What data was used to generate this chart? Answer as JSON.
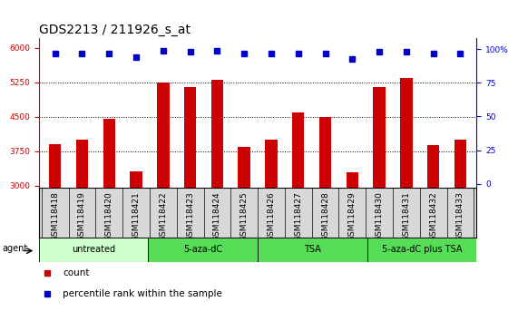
{
  "title": "GDS2213 / 211926_s_at",
  "samples": [
    "GSM118418",
    "GSM118419",
    "GSM118420",
    "GSM118421",
    "GSM118422",
    "GSM118423",
    "GSM118424",
    "GSM118425",
    "GSM118426",
    "GSM118427",
    "GSM118428",
    "GSM118429",
    "GSM118430",
    "GSM118431",
    "GSM118432",
    "GSM118433"
  ],
  "counts": [
    3900,
    4000,
    4450,
    3300,
    5250,
    5150,
    5300,
    3850,
    4000,
    4600,
    4500,
    3280,
    5150,
    5350,
    3880,
    4000
  ],
  "percentile_ranks": [
    97,
    97,
    97,
    94,
    99,
    98,
    99,
    97,
    97,
    97,
    97,
    93,
    98,
    98,
    97,
    97
  ],
  "bar_color": "#cc0000",
  "dot_color": "#0000cc",
  "ylim_left": [
    2950,
    6200
  ],
  "ylim_right": [
    -3,
    108
  ],
  "yticks_left": [
    3000,
    3750,
    4500,
    5250,
    6000
  ],
  "yticks_right": [
    0,
    25,
    50,
    75,
    100
  ],
  "grid_lines": [
    3750,
    4500,
    5250
  ],
  "group_list": [
    {
      "label": "untreated",
      "start": 0,
      "end": 4,
      "color": "#ccffcc"
    },
    {
      "label": "5-aza-dC",
      "start": 4,
      "end": 8,
      "color": "#55dd55"
    },
    {
      "label": "TSA",
      "start": 8,
      "end": 12,
      "color": "#55dd55"
    },
    {
      "label": "5-aza-dC plus TSA",
      "start": 12,
      "end": 16,
      "color": "#55dd55"
    }
  ],
  "agent_label": "agent",
  "legend_count_label": "count",
  "legend_pct_label": "percentile rank within the sample",
  "legend_count_color": "#cc0000",
  "legend_dot_color": "#0000cc",
  "title_fontsize": 10,
  "tick_fontsize": 6.5,
  "right_tick_color": "#0000cc",
  "left_tick_color": "#cc0000",
  "xtick_bg_color": "#d8d8d8",
  "bar_width": 0.45
}
